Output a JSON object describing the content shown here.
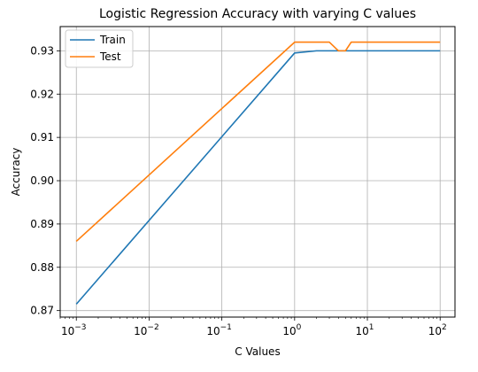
{
  "chart_data": {
    "type": "line",
    "title": "Logistic Regression Accuracy with varying C values",
    "xlabel": "C Values",
    "ylabel": "Accuracy",
    "xscale": "log",
    "xlim": [
      0.0006,
      160
    ],
    "ylim": [
      0.8685,
      0.9356
    ],
    "xticks": [
      {
        "value": 0.001,
        "base": "10",
        "exp": "−3"
      },
      {
        "value": 0.01,
        "base": "10",
        "exp": "−2"
      },
      {
        "value": 0.1,
        "base": "10",
        "exp": "−1"
      },
      {
        "value": 1,
        "base": "10",
        "exp": "0"
      },
      {
        "value": 10,
        "base": "10",
        "exp": "1"
      },
      {
        "value": 100,
        "base": "10",
        "exp": "2"
      }
    ],
    "yticks": [
      {
        "value": 0.87,
        "label": "0.87"
      },
      {
        "value": 0.88,
        "label": "0.88"
      },
      {
        "value": 0.89,
        "label": "0.89"
      },
      {
        "value": 0.9,
        "label": "0.90"
      },
      {
        "value": 0.91,
        "label": "0.91"
      },
      {
        "value": 0.92,
        "label": "0.92"
      },
      {
        "value": 0.93,
        "label": "0.93"
      }
    ],
    "grid": true,
    "legend_position": "upper-left",
    "series": [
      {
        "name": "Train",
        "color": "#1f77b4",
        "x": [
          0.001,
          1,
          2,
          3,
          4,
          5,
          6,
          10,
          100
        ],
        "y": [
          0.8715,
          0.9295,
          0.93,
          0.93,
          0.93,
          0.93,
          0.93,
          0.93,
          0.93
        ]
      },
      {
        "name": "Test",
        "color": "#ff7f0e",
        "x": [
          0.001,
          1,
          2,
          3,
          4,
          5,
          6,
          10,
          100
        ],
        "y": [
          0.886,
          0.932,
          0.932,
          0.932,
          0.93,
          0.93,
          0.932,
          0.932,
          0.932
        ]
      }
    ]
  }
}
